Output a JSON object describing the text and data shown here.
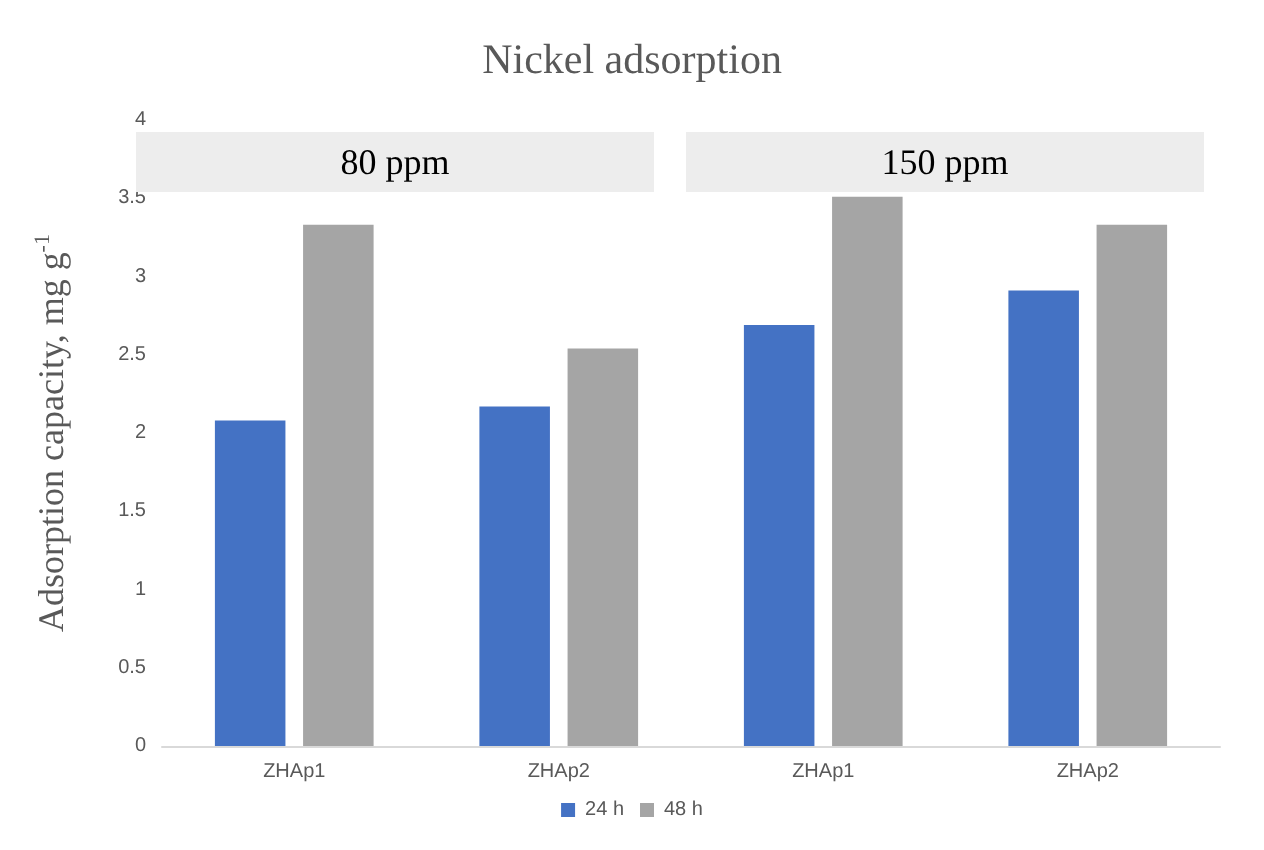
{
  "chart_data": {
    "type": "bar",
    "title": "Nickel adsorption",
    "ylabel": "Adsorption capacity, mg g$^{-1}$",
    "categories": [
      "ZHAp1",
      "ZHAp2",
      "ZHAp1",
      "ZHAp2"
    ],
    "series": [
      {
        "name": "24 h",
        "color": "#4472c4",
        "values": [
          2.08,
          2.17,
          2.69,
          2.91
        ]
      },
      {
        "name": "48 h",
        "color": "#a5a5a5",
        "values": [
          3.33,
          2.54,
          3.51,
          3.33
        ]
      }
    ],
    "ylim": [
      0,
      4
    ],
    "yticks": [
      0,
      0.5,
      1,
      1.5,
      2,
      2.5,
      3,
      3.5,
      4
    ],
    "annotations": [
      "80 ppm",
      "150 ppm"
    ],
    "grid": false,
    "legend": "bottom"
  }
}
